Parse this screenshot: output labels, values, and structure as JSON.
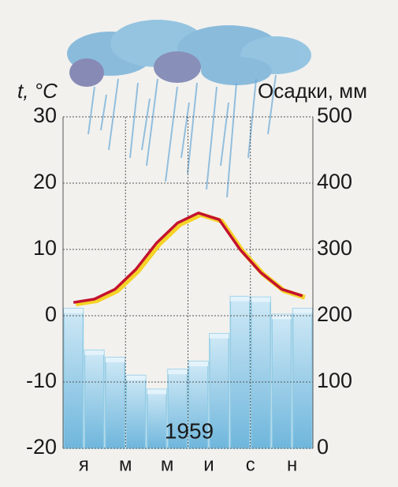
{
  "chart_data": {
    "type": "climatogram",
    "y_label": "t, °C",
    "y2_label": "Осадки, мм",
    "annotation": "1959",
    "categories": [
      "я",
      null,
      "м",
      null,
      "м",
      null,
      "и",
      null,
      "с",
      null,
      "н",
      null
    ],
    "series": [
      {
        "type": "bar",
        "axis": "y2",
        "color": "#8fcbe6",
        "values": [
          211,
          148,
          137,
          110,
          89,
          119,
          131,
          173,
          229,
          228,
          202,
          211
        ]
      },
      {
        "type": "line",
        "axis": "y",
        "color": "#c3122f",
        "values": [
          2,
          2.5,
          4,
          7,
          11,
          14,
          15.5,
          14.5,
          10,
          6.5,
          4,
          3
        ]
      }
    ],
    "ylim": [
      -20,
      30
    ],
    "yticks": [
      -20,
      -10,
      0,
      10,
      20,
      30
    ],
    "y2lim": [
      0,
      500
    ],
    "y2ticks": [
      0,
      100,
      200,
      300,
      400,
      500
    ],
    "grid": true
  }
}
